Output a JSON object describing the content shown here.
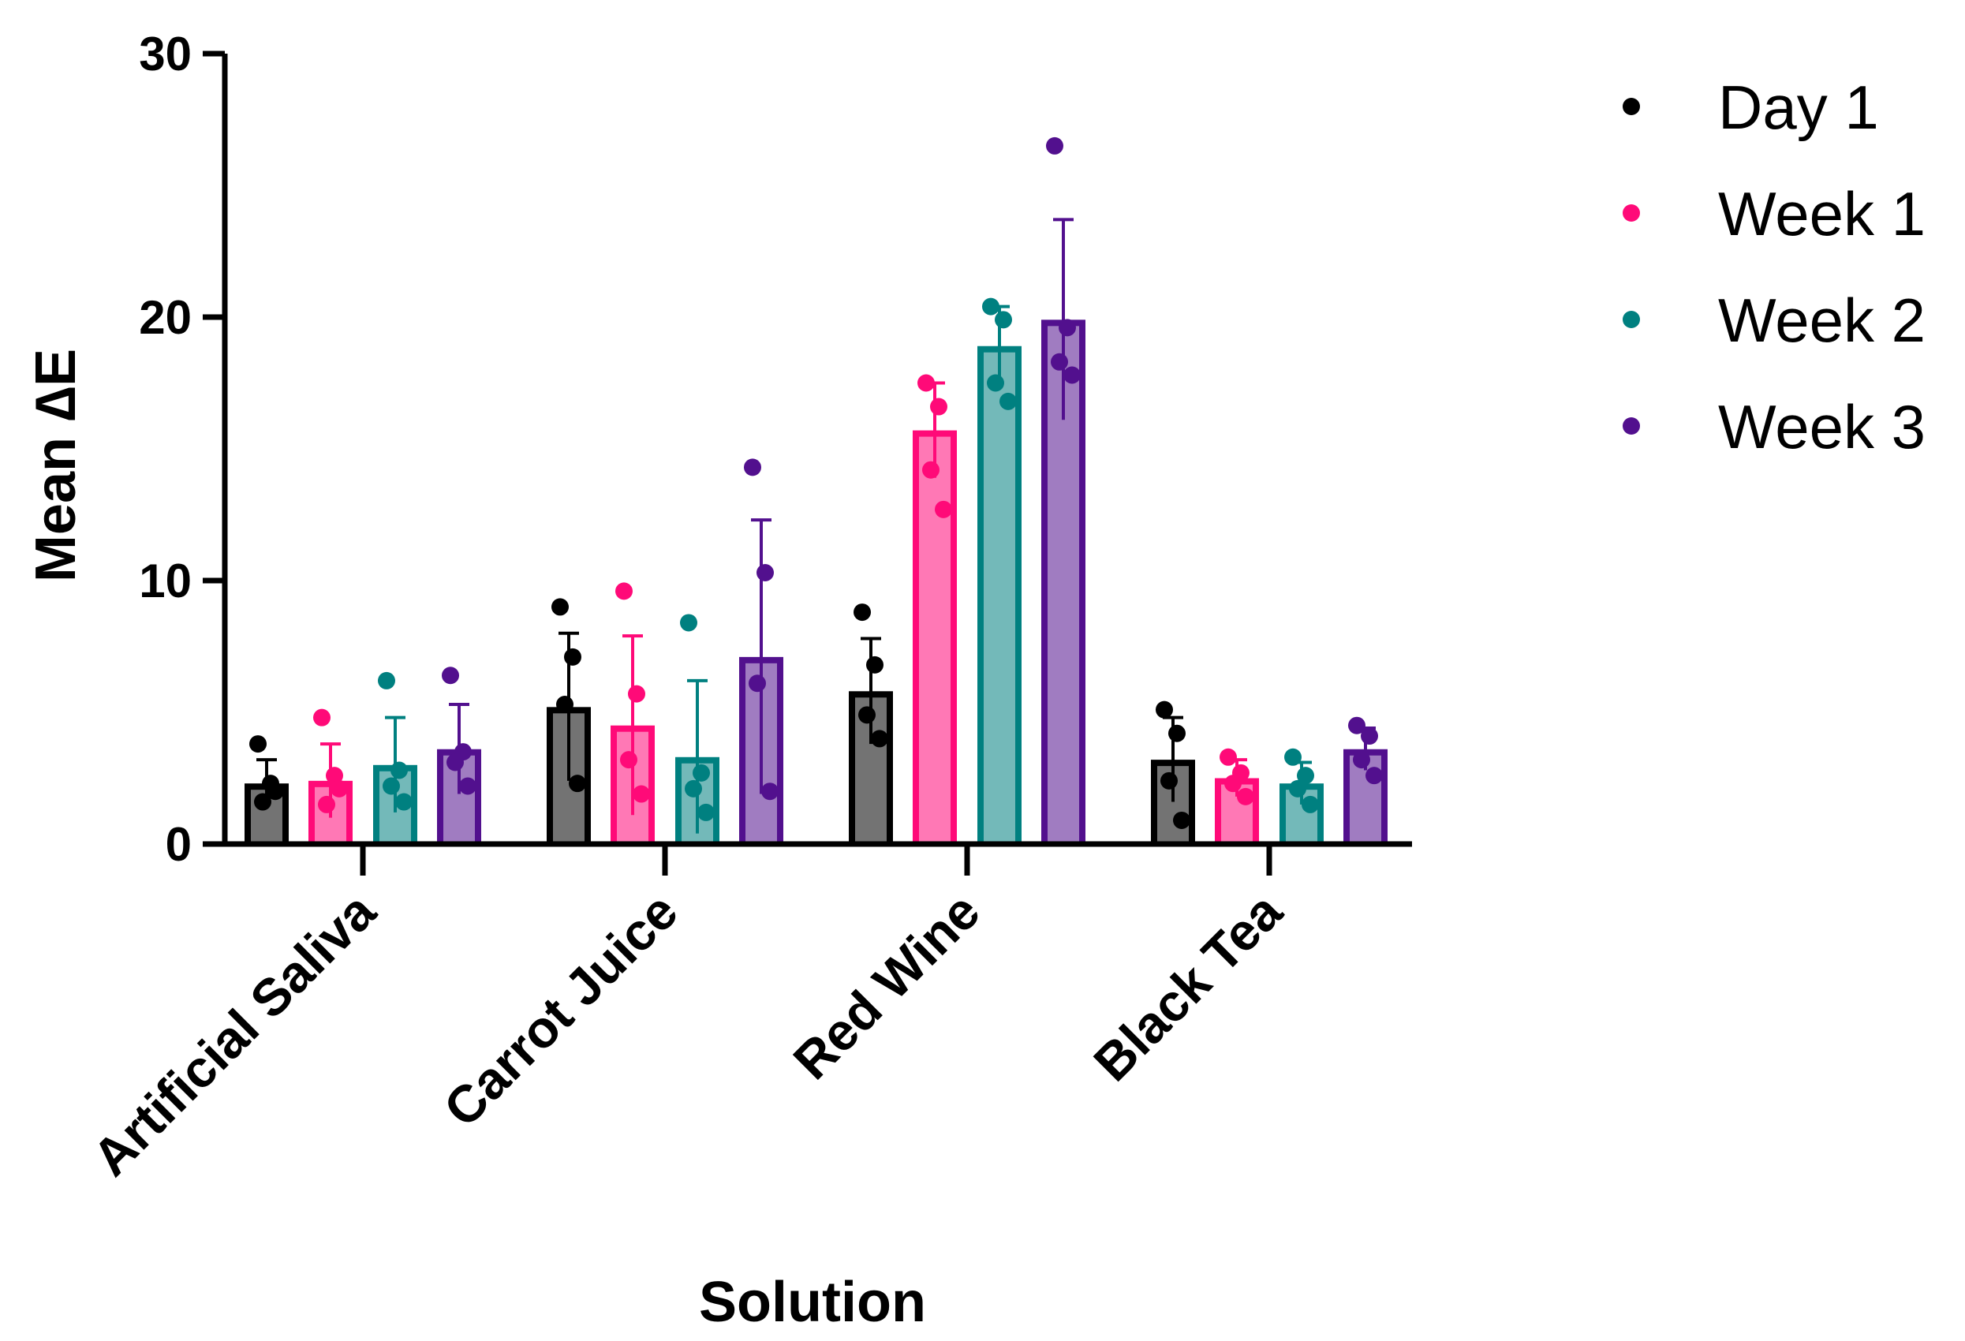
{
  "chart_data": {
    "type": "bar",
    "title": "",
    "xlabel": "Solution",
    "ylabel": "Mean ∆E",
    "ylim": [
      0,
      30
    ],
    "yticks": [
      0,
      10,
      20,
      30
    ],
    "categories": [
      "Artificial Saliva",
      "Carrot Juice",
      "Red Wine",
      "Black Tea"
    ],
    "legend_position": "top-right",
    "series": [
      {
        "name": "Day 1",
        "color": "#000000",
        "values": [
          2.3,
          5.2,
          5.8,
          3.2
        ],
        "errors": [
          0.9,
          2.8,
          2.0,
          1.6
        ],
        "points": [
          [
            3.8,
            2.3,
            1.6,
            2.0
          ],
          [
            9.0,
            7.1,
            5.3,
            2.3
          ],
          [
            8.8,
            6.8,
            4.9,
            4.0
          ],
          [
            5.1,
            4.2,
            2.4,
            0.9
          ]
        ]
      },
      {
        "name": "Week 1",
        "color": "#ff0a78",
        "values": [
          2.4,
          4.5,
          15.7,
          2.5
        ],
        "errors": [
          1.4,
          3.4,
          1.8,
          0.7
        ],
        "points": [
          [
            4.8,
            2.6,
            1.5,
            2.1
          ],
          [
            9.6,
            5.7,
            3.2,
            1.9
          ],
          [
            17.5,
            16.6,
            14.2,
            12.7
          ],
          [
            3.3,
            2.7,
            2.3,
            1.8
          ]
        ]
      },
      {
        "name": "Week 2",
        "color": "#008080",
        "values": [
          3.0,
          3.3,
          18.9,
          2.3
        ],
        "errors": [
          1.8,
          2.9,
          1.5,
          0.8
        ],
        "points": [
          [
            6.2,
            2.8,
            2.2,
            1.6
          ],
          [
            8.4,
            2.7,
            2.1,
            1.2
          ],
          [
            20.4,
            19.9,
            17.5,
            16.8
          ],
          [
            3.3,
            2.6,
            2.1,
            1.5
          ]
        ]
      },
      {
        "name": "Week 3",
        "color": "#52108e",
        "values": [
          3.6,
          7.1,
          19.9,
          3.6
        ],
        "errors": [
          1.7,
          5.2,
          3.8,
          0.8
        ],
        "points": [
          [
            6.4,
            3.5,
            3.1,
            2.2
          ],
          [
            14.3,
            10.3,
            6.1,
            2.0
          ],
          [
            26.5,
            19.6,
            18.3,
            17.8
          ],
          [
            4.5,
            4.1,
            3.2,
            2.6
          ]
        ]
      }
    ]
  }
}
